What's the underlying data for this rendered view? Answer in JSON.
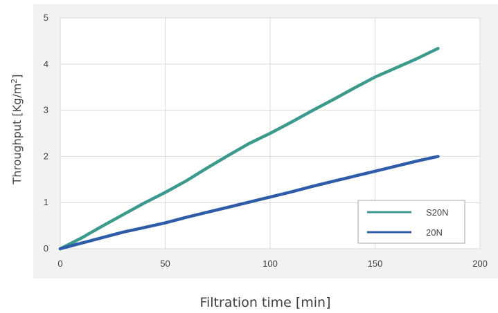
{
  "colors": {
    "panel_background": "#f2f2f2",
    "plot_background": "#ffffff",
    "gridline": "#d9d9d9",
    "text": "#404040"
  },
  "chart_data": {
    "type": "line",
    "title": "",
    "xlabel": "Filtration time [min]",
    "ylabel_main": "Throughput [Kg/m",
    "ylabel_superscript": "2",
    "ylabel_suffix": "]",
    "xlim": [
      0,
      200
    ],
    "ylim": [
      0,
      5
    ],
    "x_ticks": [
      0,
      50,
      100,
      150,
      200
    ],
    "y_ticks": [
      0,
      1,
      2,
      3,
      4,
      5
    ],
    "grid": true,
    "legend_position": "bottom-right",
    "series": [
      {
        "name": "S20N",
        "color": "#3b9a8c",
        "x": [
          0,
          10,
          20,
          30,
          40,
          50,
          60,
          70,
          80,
          90,
          100,
          110,
          120,
          130,
          140,
          150,
          160,
          170,
          180
        ],
        "y": [
          0,
          0.23,
          0.49,
          0.74,
          0.99,
          1.22,
          1.47,
          1.75,
          2.02,
          2.28,
          2.5,
          2.74,
          2.99,
          3.23,
          3.48,
          3.72,
          3.92,
          4.12,
          4.34
        ]
      },
      {
        "name": "20N",
        "color": "#2e5ca8",
        "x": [
          0,
          10,
          20,
          30,
          40,
          50,
          60,
          70,
          80,
          90,
          100,
          110,
          120,
          130,
          140,
          150,
          160,
          170,
          180
        ],
        "y": [
          0,
          0.12,
          0.24,
          0.36,
          0.46,
          0.56,
          0.68,
          0.79,
          0.9,
          1.01,
          1.12,
          1.23,
          1.35,
          1.46,
          1.57,
          1.68,
          1.79,
          1.9,
          2.0
        ]
      }
    ]
  }
}
